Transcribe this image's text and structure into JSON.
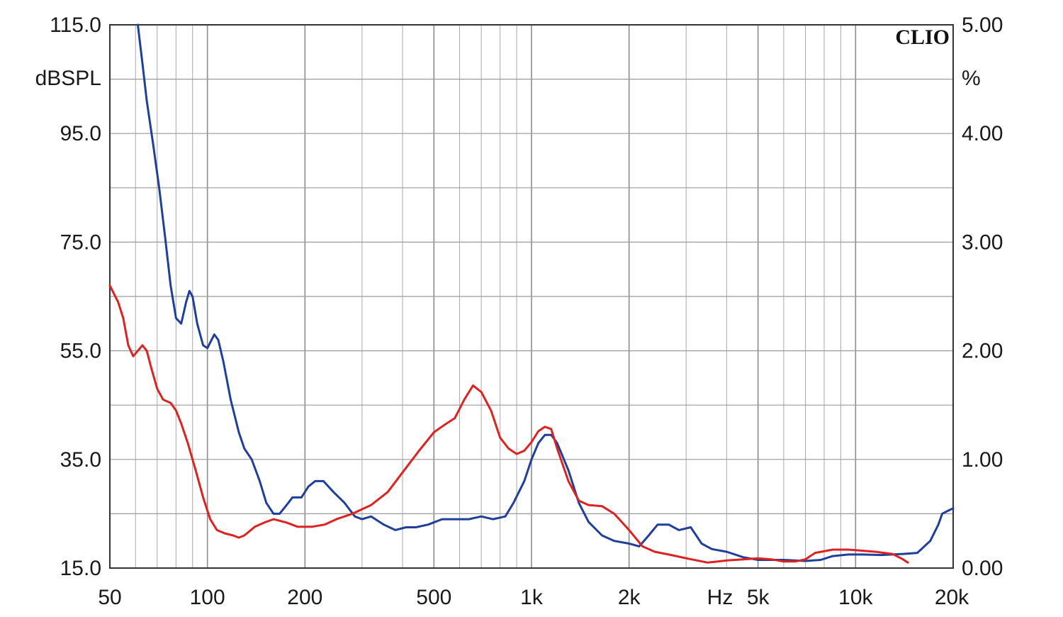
{
  "chart_data": {
    "type": "line",
    "brand": "CLIO",
    "x_unit": "Hz",
    "y_left_unit": "dBSPL",
    "y_right_unit": "%",
    "x_scale": "log",
    "xlim": [
      50,
      20000
    ],
    "ylim_left": [
      15,
      115
    ],
    "ylim_right": [
      0,
      5
    ],
    "grid": true,
    "x_ticks": [
      {
        "value": 50,
        "label": "50"
      },
      {
        "value": 100,
        "label": "100"
      },
      {
        "value": 200,
        "label": "200"
      },
      {
        "value": 500,
        "label": "500"
      },
      {
        "value": 1000,
        "label": "1k"
      },
      {
        "value": 2000,
        "label": "2k"
      },
      {
        "value": 5000,
        "label": "5k"
      },
      {
        "value": 10000,
        "label": "10k"
      },
      {
        "value": 20000,
        "label": "20k"
      }
    ],
    "y_left_ticks": [
      {
        "value": 115,
        "label": "115.0"
      },
      {
        "value": 95,
        "label": "95.0"
      },
      {
        "value": 75,
        "label": "75.0"
      },
      {
        "value": 55,
        "label": "55.0"
      },
      {
        "value": 35,
        "label": "35.0"
      },
      {
        "value": 15,
        "label": "15.0"
      }
    ],
    "y_right_ticks": [
      {
        "value": 5,
        "label": "5.00"
      },
      {
        "value": 4,
        "label": "4.00"
      },
      {
        "value": 3,
        "label": "3.00"
      },
      {
        "value": 2,
        "label": "2.00"
      },
      {
        "value": 1,
        "label": "1.00"
      },
      {
        "value": 0,
        "label": "0.00"
      }
    ],
    "series": [
      {
        "color": "#1f3f99",
        "axis": "left",
        "points": [
          [
            61,
            115
          ],
          [
            63,
            108
          ],
          [
            65,
            101
          ],
          [
            68,
            93
          ],
          [
            71,
            85
          ],
          [
            74,
            76
          ],
          [
            77,
            67
          ],
          [
            80,
            61
          ],
          [
            83,
            60
          ],
          [
            86,
            64
          ],
          [
            88,
            66
          ],
          [
            90,
            65
          ],
          [
            93,
            60
          ],
          [
            97,
            56
          ],
          [
            100,
            55.5
          ],
          [
            103,
            57
          ],
          [
            105,
            58
          ],
          [
            108,
            57
          ],
          [
            112,
            53
          ],
          [
            118,
            46
          ],
          [
            125,
            40
          ],
          [
            130,
            37
          ],
          [
            137,
            35
          ],
          [
            145,
            31
          ],
          [
            152,
            27
          ],
          [
            160,
            25
          ],
          [
            167,
            25
          ],
          [
            175,
            26.5
          ],
          [
            183,
            28
          ],
          [
            195,
            28
          ],
          [
            205,
            30
          ],
          [
            215,
            31
          ],
          [
            228,
            31
          ],
          [
            245,
            29
          ],
          [
            265,
            27
          ],
          [
            285,
            24.5
          ],
          [
            300,
            24
          ],
          [
            320,
            24.5
          ],
          [
            350,
            23
          ],
          [
            380,
            22
          ],
          [
            410,
            22.5
          ],
          [
            440,
            22.5
          ],
          [
            480,
            23
          ],
          [
            530,
            24
          ],
          [
            580,
            24
          ],
          [
            640,
            24
          ],
          [
            700,
            24.5
          ],
          [
            760,
            24
          ],
          [
            830,
            24.5
          ],
          [
            880,
            27
          ],
          [
            950,
            31
          ],
          [
            1000,
            35
          ],
          [
            1050,
            38
          ],
          [
            1100,
            39.5
          ],
          [
            1150,
            39.5
          ],
          [
            1200,
            38
          ],
          [
            1300,
            33
          ],
          [
            1400,
            27
          ],
          [
            1500,
            23.5
          ],
          [
            1650,
            21
          ],
          [
            1800,
            20
          ],
          [
            2000,
            19.5
          ],
          [
            2150,
            19
          ],
          [
            2300,
            21
          ],
          [
            2450,
            23
          ],
          [
            2650,
            23
          ],
          [
            2850,
            22
          ],
          [
            3100,
            22.5
          ],
          [
            3350,
            19.5
          ],
          [
            3600,
            18.5
          ],
          [
            4000,
            18
          ],
          [
            4500,
            17
          ],
          [
            5000,
            16.5
          ],
          [
            6000,
            16.5
          ],
          [
            7000,
            16.3
          ],
          [
            7800,
            16.5
          ],
          [
            8500,
            17.2
          ],
          [
            9500,
            17.5
          ],
          [
            10500,
            17.5
          ],
          [
            12000,
            17.4
          ],
          [
            14000,
            17.6
          ],
          [
            15500,
            17.8
          ],
          [
            17000,
            20
          ],
          [
            18000,
            23
          ],
          [
            18500,
            25
          ],
          [
            19200,
            25.5
          ],
          [
            20000,
            26
          ]
        ]
      },
      {
        "color": "#dd2222",
        "axis": "right",
        "points": [
          [
            50,
            2.6
          ],
          [
            53,
            2.45
          ],
          [
            55,
            2.3
          ],
          [
            57,
            2.05
          ],
          [
            59,
            1.95
          ],
          [
            61,
            2.0
          ],
          [
            63,
            2.05
          ],
          [
            65,
            2.0
          ],
          [
            67,
            1.85
          ],
          [
            70,
            1.65
          ],
          [
            73,
            1.55
          ],
          [
            77,
            1.52
          ],
          [
            80,
            1.45
          ],
          [
            83,
            1.33
          ],
          [
            87,
            1.15
          ],
          [
            92,
            0.9
          ],
          [
            97,
            0.65
          ],
          [
            102,
            0.45
          ],
          [
            107,
            0.35
          ],
          [
            113,
            0.32
          ],
          [
            120,
            0.3
          ],
          [
            125,
            0.28
          ],
          [
            130,
            0.3
          ],
          [
            140,
            0.38
          ],
          [
            150,
            0.42
          ],
          [
            160,
            0.45
          ],
          [
            175,
            0.42
          ],
          [
            190,
            0.38
          ],
          [
            210,
            0.38
          ],
          [
            230,
            0.4
          ],
          [
            250,
            0.45
          ],
          [
            280,
            0.5
          ],
          [
            320,
            0.58
          ],
          [
            360,
            0.7
          ],
          [
            400,
            0.88
          ],
          [
            450,
            1.08
          ],
          [
            500,
            1.25
          ],
          [
            540,
            1.32
          ],
          [
            580,
            1.38
          ],
          [
            620,
            1.55
          ],
          [
            660,
            1.68
          ],
          [
            700,
            1.62
          ],
          [
            750,
            1.45
          ],
          [
            800,
            1.2
          ],
          [
            850,
            1.1
          ],
          [
            900,
            1.05
          ],
          [
            950,
            1.08
          ],
          [
            1000,
            1.16
          ],
          [
            1050,
            1.26
          ],
          [
            1100,
            1.3
          ],
          [
            1150,
            1.28
          ],
          [
            1200,
            1.1
          ],
          [
            1300,
            0.8
          ],
          [
            1400,
            0.62
          ],
          [
            1500,
            0.58
          ],
          [
            1650,
            0.57
          ],
          [
            1800,
            0.5
          ],
          [
            2000,
            0.35
          ],
          [
            2200,
            0.2
          ],
          [
            2400,
            0.15
          ],
          [
            2700,
            0.12
          ],
          [
            3000,
            0.09
          ],
          [
            3500,
            0.05
          ],
          [
            4000,
            0.07
          ],
          [
            4500,
            0.08
          ],
          [
            5000,
            0.09
          ],
          [
            5500,
            0.08
          ],
          [
            6000,
            0.06
          ],
          [
            6500,
            0.06
          ],
          [
            7000,
            0.08
          ],
          [
            7500,
            0.14
          ],
          [
            8500,
            0.17
          ],
          [
            9500,
            0.17
          ],
          [
            10500,
            0.16
          ],
          [
            11500,
            0.15
          ],
          [
            13000,
            0.13
          ],
          [
            14000,
            0.08
          ],
          [
            14500,
            0.05
          ]
        ]
      }
    ]
  }
}
